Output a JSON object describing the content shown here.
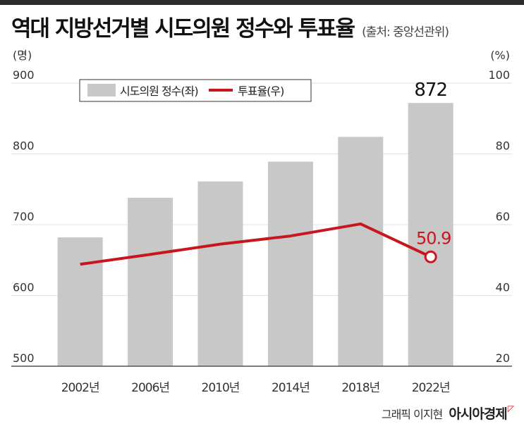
{
  "header": {
    "title": "역대 지방선거별 시도의원 정수와 투표율",
    "source": "(출처: 중앙선관위)"
  },
  "credit": {
    "graphic": "그래픽 이지현",
    "brand": "아시아경제"
  },
  "colors": {
    "bar": "#c8c8c8",
    "line": "#c8161e",
    "text": "#333333",
    "rule": "#555555"
  },
  "chart_data": {
    "type": "bar",
    "categories": [
      "2002년",
      "2006년",
      "2010년",
      "2014년",
      "2018년",
      "2022년"
    ],
    "series": [
      {
        "name": "시도의원 정수(좌)",
        "type": "bar",
        "axis": "left",
        "values": [
          682,
          738,
          761,
          789,
          824,
          872
        ]
      },
      {
        "name": "투표율(우)",
        "type": "line",
        "axis": "right",
        "values": [
          48.8,
          51.6,
          54.5,
          56.8,
          60.2,
          50.9
        ]
      }
    ],
    "left_axis": {
      "unit": "(명)",
      "range": [
        500,
        900
      ],
      "ticks": [
        500,
        600,
        700,
        800,
        900
      ]
    },
    "right_axis": {
      "unit": "(%)",
      "range": [
        20,
        100
      ],
      "ticks": [
        20,
        40,
        60,
        80,
        100
      ]
    },
    "annotations": [
      {
        "series": 0,
        "index": 5,
        "label": "872"
      },
      {
        "series": 1,
        "index": 5,
        "label": "50.9"
      }
    ],
    "legend": "top-left",
    "grid": true
  }
}
